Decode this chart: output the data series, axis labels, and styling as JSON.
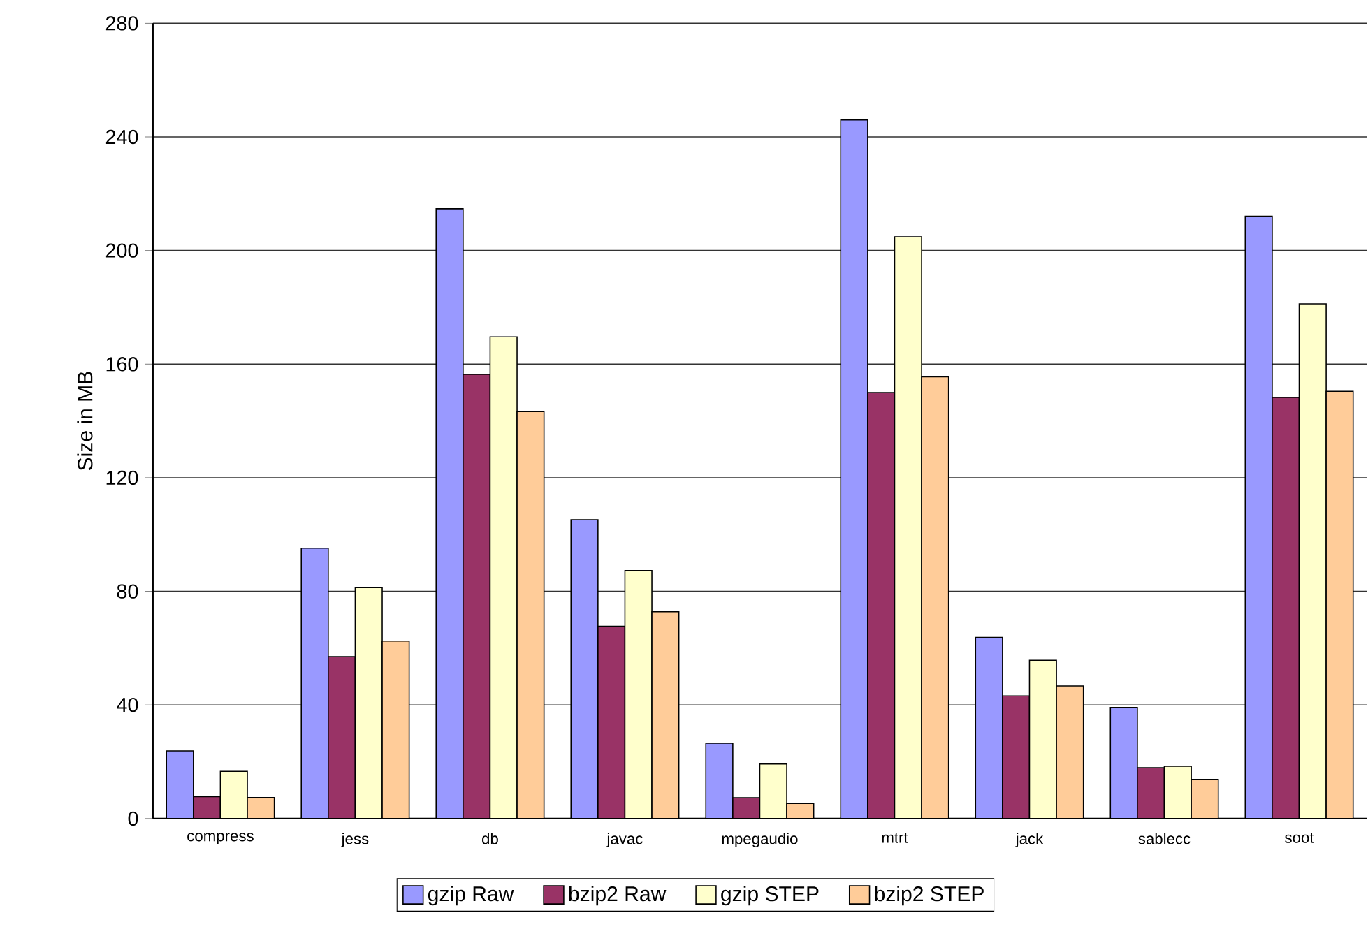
{
  "chart_data": {
    "type": "bar",
    "ylabel": "Size in MB",
    "categories": [
      "compress",
      "jess",
      "db",
      "javac",
      "mpegaudio",
      "mtrt",
      "jack",
      "sablecc",
      "soot"
    ],
    "series": [
      {
        "name": "gzip Raw",
        "color": "#9999ff",
        "values": [
          23.8,
          95.2,
          214.7,
          105.2,
          26.5,
          246,
          63.8,
          39.1,
          212.1
        ]
      },
      {
        "name": "bzip2 Raw",
        "color": "#993366",
        "values": [
          7.7,
          57,
          156.4,
          67.7,
          7.3,
          150,
          43.2,
          17.9,
          148.3
        ]
      },
      {
        "name": "gzip STEP",
        "color": "#ffffcc",
        "values": [
          16.6,
          81.3,
          169.6,
          87.3,
          19.2,
          204.8,
          55.7,
          18.4,
          181.2
        ]
      },
      {
        "name": "bzip2 STEP",
        "color": "#ffcc99",
        "values": [
          7.4,
          62.5,
          143.3,
          72.8,
          5.3,
          155.5,
          46.7,
          13.8,
          150.4
        ]
      }
    ],
    "ylim": [
      0,
      280
    ],
    "yticks": [
      0,
      40,
      80,
      120,
      160,
      200,
      240,
      280
    ],
    "grid": "y",
    "legend": "bottom"
  }
}
